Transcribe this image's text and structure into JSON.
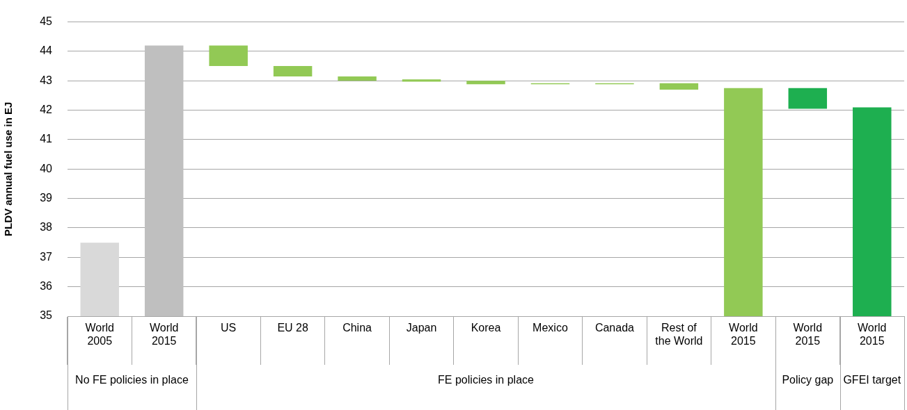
{
  "chart_data": {
    "type": "bar",
    "ylabel": "PLDV annual fuel use in EJ",
    "categories": [
      "World 2005",
      "World 2015",
      "US",
      "EU 28",
      "China",
      "Japan",
      "Korea",
      "Mexico",
      "Canada",
      "Rest of the World",
      "World 2015",
      "World 2015",
      "World 2015"
    ],
    "base": [
      35,
      35,
      43.5,
      43.15,
      43.0,
      42.97,
      42.88,
      42.88,
      42.88,
      42.7,
      35,
      42.05,
      35
    ],
    "values": [
      2.5,
      9.2,
      0.7,
      0.35,
      0.15,
      0.08,
      0.12,
      0.04,
      0.04,
      0.22,
      7.75,
      0.7,
      7.1
    ],
    "colors": [
      "#d9d9d9",
      "#bfbfbf",
      "#92c955",
      "#92c955",
      "#92c955",
      "#92c955",
      "#92c955",
      "#92c955",
      "#92c955",
      "#92c955",
      "#92c955",
      "#1eaf50",
      "#1eaf50"
    ],
    "ylim": [
      35,
      45
    ],
    "yticks": [
      35,
      36,
      37,
      38,
      39,
      40,
      41,
      42,
      43,
      44,
      45
    ],
    "grid": "y",
    "legend": false,
    "annotations": [
      "No FE policies in place",
      "FE policies in place",
      "Policy gap",
      "GFEI target"
    ]
  }
}
